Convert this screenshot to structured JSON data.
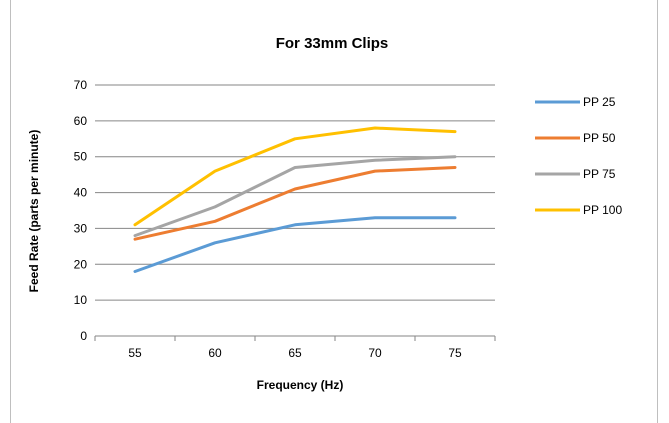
{
  "chart_data": {
    "type": "line",
    "title": "For 33mm Clips",
    "xlabel": "Frequency (Hz)",
    "ylabel": "Feed Rate (parts per minute)",
    "categories": [
      "55",
      "60",
      "65",
      "70",
      "75"
    ],
    "y_ticks": [
      "0",
      "10",
      "20",
      "30",
      "40",
      "50",
      "60",
      "70"
    ],
    "ylim": [
      0,
      70
    ],
    "grid": true,
    "legend_position": "right",
    "series": [
      {
        "name": "PP 25",
        "color": "#5b9bd5",
        "values": [
          18,
          26,
          31,
          33,
          33
        ]
      },
      {
        "name": "PP 50",
        "color": "#ed7d31",
        "values": [
          27,
          32,
          41,
          46,
          47
        ]
      },
      {
        "name": "PP 75",
        "color": "#a5a5a5",
        "values": [
          28,
          36,
          47,
          49,
          50
        ]
      },
      {
        "name": "PP 100",
        "color": "#ffc000",
        "values": [
          31,
          46,
          55,
          58,
          57
        ]
      }
    ]
  }
}
